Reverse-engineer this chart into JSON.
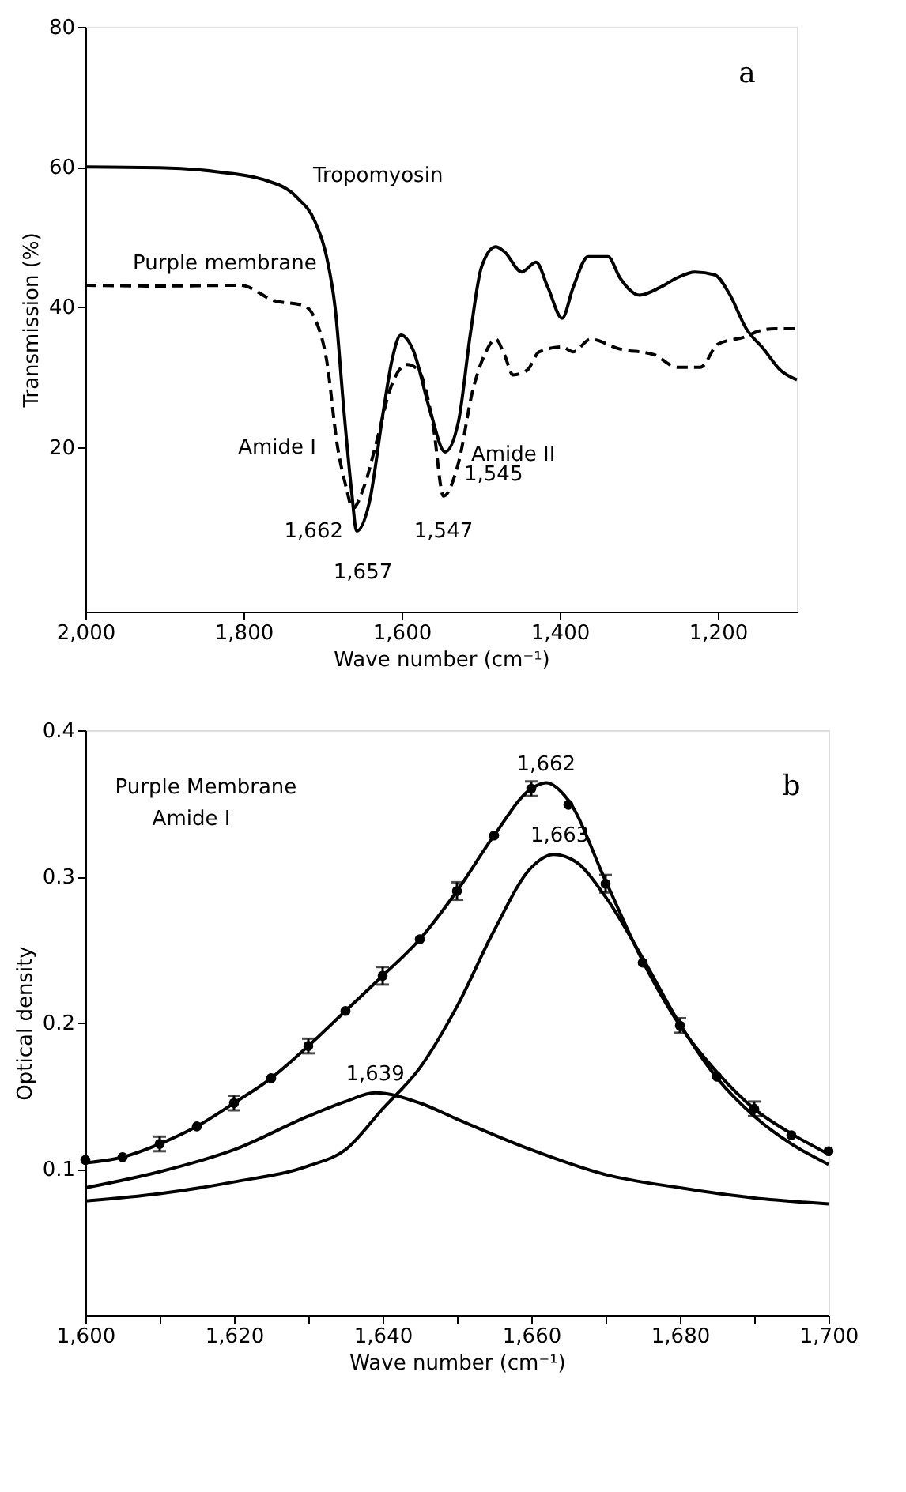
{
  "chart_data": [
    {
      "type": "line",
      "xlabel": "Wave number (cm⁻¹)",
      "ylabel": "Transmission (%)",
      "xlim": [
        2000,
        1100
      ],
      "ylim": [
        -3.5,
        80
      ],
      "xticks": [
        {
          "value": 2000,
          "label": "2,000"
        },
        {
          "value": 1800,
          "label": "1,800"
        },
        {
          "value": 1600,
          "label": "1,600"
        },
        {
          "value": 1400,
          "label": "1,400"
        },
        {
          "value": 1200,
          "label": "1,200"
        }
      ],
      "yticks": [
        20,
        40,
        60,
        80
      ],
      "series": [
        {
          "name": "Tropomyosin",
          "color": "#000000",
          "line_style": "solid",
          "x": [
            2000,
            1906,
            1833,
            1775,
            1732,
            1710,
            1695,
            1684,
            1673,
            1663,
            1657,
            1641,
            1623,
            1612,
            1601,
            1586,
            1564,
            1545,
            1528,
            1513,
            1499,
            1481,
            1470,
            1448,
            1430,
            1415,
            1397,
            1383,
            1364,
            1339,
            1324,
            1299,
            1273,
            1251,
            1229,
            1204,
            1186,
            1164,
            1142,
            1121,
            1100
          ],
          "values": [
            60.0,
            59.9,
            59.3,
            58.2,
            55.6,
            52.3,
            47.2,
            39.8,
            25.2,
            13.4,
            8.0,
            12.0,
            25.2,
            32.5,
            36.0,
            34.0,
            25.2,
            19.3,
            23.7,
            36.2,
            45.7,
            48.6,
            47.9,
            45.0,
            46.4,
            42.8,
            38.4,
            42.8,
            47.2,
            47.2,
            44.2,
            41.7,
            42.8,
            44.2,
            45.0,
            44.6,
            42.0,
            36.9,
            34.0,
            31.0,
            29.6
          ]
        },
        {
          "name": "Purple membrane",
          "color": "#000000",
          "line_style": "dashed",
          "x": [
            2000,
            1906,
            1804,
            1761,
            1724,
            1710,
            1695,
            1681,
            1670,
            1662,
            1648,
            1630,
            1615,
            1593,
            1579,
            1560,
            1547,
            1528,
            1510,
            1495,
            1481,
            1470,
            1459,
            1441,
            1426,
            1397,
            1383,
            1361,
            1324,
            1281,
            1251,
            1222,
            1200,
            1164,
            1150,
            1128,
            1102
          ],
          "values": [
            43.1,
            43.0,
            43.1,
            40.9,
            40.2,
            38.4,
            32.5,
            20.0,
            14.2,
            11.2,
            14.2,
            21.5,
            28.1,
            31.8,
            31.0,
            23.0,
            13.0,
            17.8,
            28.1,
            33.2,
            35.4,
            33.2,
            30.3,
            31.0,
            33.6,
            34.3,
            33.6,
            35.4,
            34.0,
            33.2,
            31.4,
            31.4,
            34.7,
            35.8,
            36.5,
            36.9,
            36.9
          ]
        }
      ],
      "annotations": [
        "a",
        {
          "text": "Amide I",
          "x": 1680,
          "y": 20
        },
        {
          "text": "Amide II",
          "x": 1540,
          "y": 19
        },
        {
          "text": "1,662",
          "x": 1662,
          "y": 11.2
        },
        {
          "text": "1,657",
          "x": 1657,
          "y": 8
        },
        {
          "text": "1,547",
          "x": 1547,
          "y": 13
        },
        {
          "text": "1,545",
          "x": 1545,
          "y": 19.3
        }
      ]
    },
    {
      "type": "line",
      "xlabel": "Wave number (cm⁻¹)",
      "ylabel": "Optical density",
      "xlim": [
        1600,
        1700
      ],
      "ylim": [
        0,
        0.4
      ],
      "xticks": [
        {
          "value": 1600,
          "label": "1,600"
        },
        {
          "value": 1610,
          "label": null
        },
        {
          "value": 1620,
          "label": "1,620"
        },
        {
          "value": 1630,
          "label": null
        },
        {
          "value": 1640,
          "label": "1,640"
        },
        {
          "value": 1650,
          "label": null
        },
        {
          "value": 1660,
          "label": "1,660"
        },
        {
          "value": 1670,
          "label": null
        },
        {
          "value": 1680,
          "label": "1,680"
        },
        {
          "value": 1690,
          "label": null
        },
        {
          "value": 1700,
          "label": "1,700"
        }
      ],
      "yticks": [
        0.1,
        0.2,
        0.3,
        0.4
      ],
      "series": [
        {
          "type": "line",
          "color": "#000000",
          "line_style": "solid",
          "x": [
            1600,
            1605,
            1610,
            1615,
            1620,
            1625,
            1630,
            1635,
            1640,
            1645,
            1650,
            1655,
            1660,
            1662,
            1665,
            1670,
            1675,
            1680,
            1685,
            1690,
            1695,
            1700
          ],
          "values": [
            0.104,
            0.108,
            0.117,
            0.129,
            0.145,
            0.162,
            0.184,
            0.208,
            0.232,
            0.257,
            0.29,
            0.328,
            0.36,
            0.364,
            0.352,
            0.297,
            0.242,
            0.198,
            0.166,
            0.141,
            0.124,
            0.11
          ]
        },
        {
          "type": "line",
          "color": "#000000",
          "line_style": "solid",
          "x": [
            1600,
            1610,
            1620,
            1630,
            1635,
            1639,
            1645,
            1650,
            1660,
            1670,
            1680,
            1690,
            1700
          ],
          "values": [
            0.087,
            0.098,
            0.113,
            0.136,
            0.146,
            0.152,
            0.145,
            0.134,
            0.113,
            0.096,
            0.087,
            0.08,
            0.076
          ]
        },
        {
          "type": "line",
          "color": "#000000",
          "line_style": "solid",
          "x": [
            1600,
            1610,
            1620,
            1630,
            1635,
            1640,
            1645,
            1650,
            1655,
            1660,
            1663,
            1666,
            1670,
            1675,
            1680,
            1685,
            1690,
            1695,
            1700
          ],
          "values": [
            0.078,
            0.083,
            0.091,
            0.102,
            0.113,
            0.141,
            0.169,
            0.211,
            0.263,
            0.306,
            0.315,
            0.31,
            0.286,
            0.244,
            0.199,
            0.162,
            0.136,
            0.117,
            0.103
          ]
        },
        {
          "type": "scatter",
          "color": "#000000",
          "marker": "circle",
          "x": [
            1600,
            1605,
            1610,
            1615,
            1620,
            1625,
            1630,
            1635,
            1640,
            1645,
            1650,
            1655,
            1660,
            1665,
            1670,
            1675,
            1680,
            1685,
            1690,
            1695,
            1700
          ],
          "values": [
            0.106,
            0.108,
            0.117,
            0.129,
            0.145,
            0.162,
            0.184,
            0.208,
            0.232,
            0.257,
            0.29,
            0.328,
            0.36,
            0.349,
            0.295,
            0.241,
            0.198,
            0.163,
            0.141,
            0.123,
            0.112
          ],
          "errors": [
            null,
            null,
            0.005,
            null,
            0.005,
            null,
            0.005,
            null,
            0.006,
            null,
            0.006,
            null,
            0.005,
            null,
            0.006,
            null,
            0.005,
            null,
            0.005,
            null,
            null
          ]
        }
      ],
      "annotations": [
        "Purple Membrane",
        "Amide I",
        "b",
        {
          "text": "1,662",
          "x": 1662,
          "y": 0.364
        },
        {
          "text": "1,663",
          "x": 1663,
          "y": 0.315
        },
        {
          "text": "1,639",
          "x": 1639,
          "y": 0.152
        }
      ]
    }
  ]
}
